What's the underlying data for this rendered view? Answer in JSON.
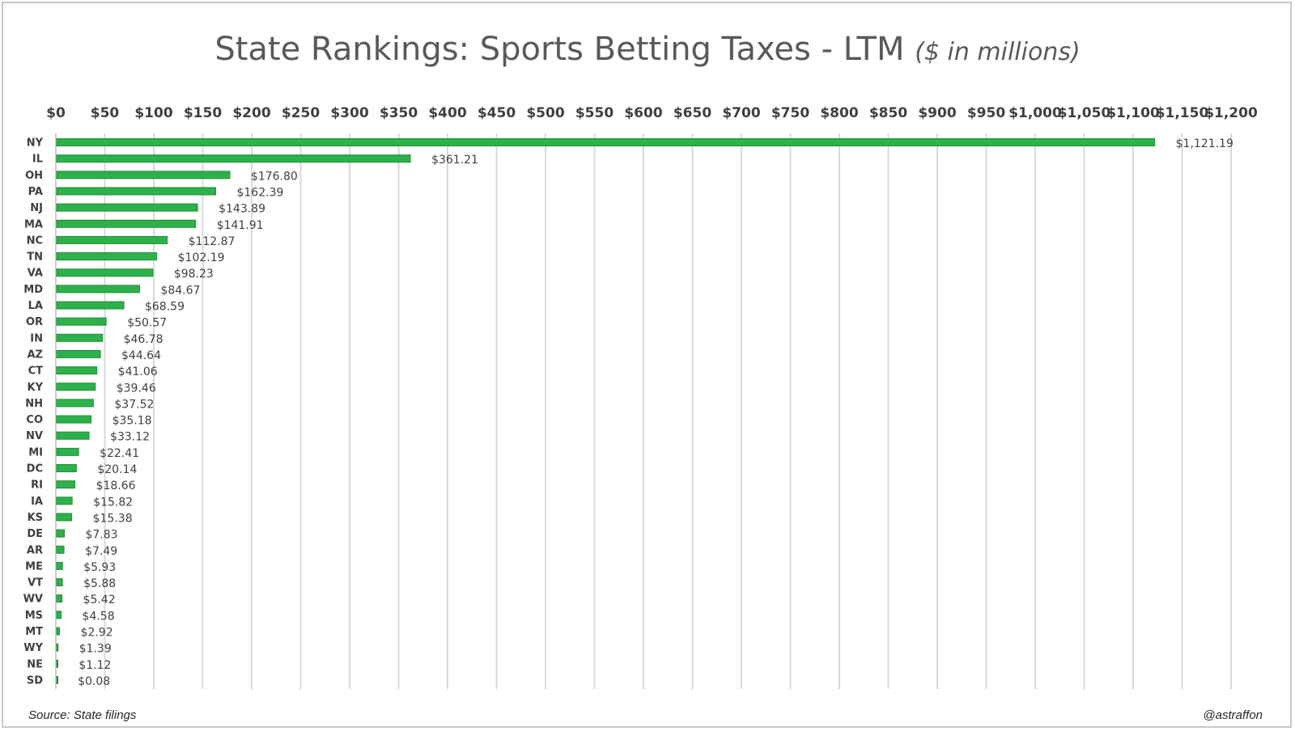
{
  "chart_data": {
    "type": "bar",
    "orientation": "horizontal",
    "title": "State Rankings: Sports Betting Taxes - LTM",
    "subtitle": "($ in millions)",
    "source": "Source: State filings",
    "credit": "@astraffon",
    "xlim": [
      0,
      1200
    ],
    "ticks": [
      "$0",
      "$50",
      "$100",
      "$150",
      "$200",
      "$250",
      "$300",
      "$350",
      "$400",
      "$450",
      "$500",
      "$550",
      "$600",
      "$650",
      "$700",
      "$750",
      "$800",
      "$850",
      "$900",
      "$950",
      "$1,000",
      "$1,050",
      "$1,100",
      "$1,150",
      "$1,200"
    ],
    "grid": true,
    "bar_color": "#2db14a",
    "categories": [
      "NY",
      "IL",
      "OH",
      "PA",
      "NJ",
      "MA",
      "NC",
      "TN",
      "VA",
      "MD",
      "LA",
      "OR",
      "IN",
      "AZ",
      "CT",
      "KY",
      "NH",
      "CO",
      "NV",
      "MI",
      "DC",
      "RI",
      "IA",
      "KS",
      "DE",
      "AR",
      "ME",
      "VT",
      "WV",
      "MS",
      "MT",
      "WY",
      "NE",
      "SD"
    ],
    "values": [
      1121.19,
      361.21,
      176.8,
      162.39,
      143.89,
      141.91,
      112.87,
      102.19,
      98.23,
      84.67,
      68.59,
      50.57,
      46.78,
      44.64,
      41.06,
      39.46,
      37.52,
      35.18,
      33.12,
      22.41,
      20.14,
      18.66,
      15.82,
      15.38,
      7.83,
      7.49,
      5.93,
      5.88,
      5.42,
      4.58,
      2.92,
      1.39,
      1.12,
      0.08
    ],
    "labels": [
      "$1,121.19",
      "$361.21",
      "$176.80",
      "$162.39",
      "$143.89",
      "$141.91",
      "$112.87",
      "$102.19",
      "$98.23",
      "$84.67",
      "$68.59",
      "$50.57",
      "$46.78",
      "$44.64",
      "$41.06",
      "$39.46",
      "$37.52",
      "$35.18",
      "$33.12",
      "$22.41",
      "$20.14",
      "$18.66",
      "$15.82",
      "$15.38",
      "$7.83",
      "$7.49",
      "$5.93",
      "$5.88",
      "$5.42",
      "$4.58",
      "$2.92",
      "$1.39",
      "$1.12",
      "$0.08"
    ]
  }
}
